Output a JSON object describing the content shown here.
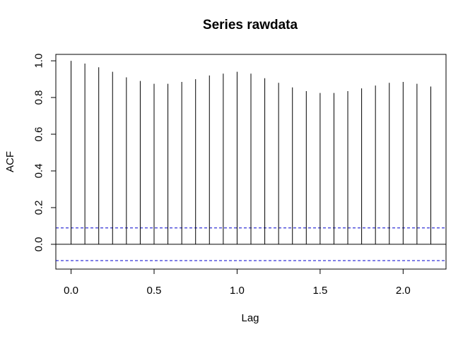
{
  "chart_data": {
    "type": "bar",
    "title": "Series  rawdata",
    "xlabel": "Lag",
    "ylabel": "ACF",
    "xlim": [
      -0.0917,
      2.2583
    ],
    "ylim": [
      -0.135,
      1.035
    ],
    "x_ticks": [
      "0.0",
      "0.5",
      "1.0",
      "1.5",
      "2.0"
    ],
    "y_ticks": [
      "0.0",
      "0.2",
      "0.4",
      "0.6",
      "0.8",
      "1.0"
    ],
    "x": [
      0.0,
      0.0833,
      0.1667,
      0.25,
      0.3333,
      0.4167,
      0.5,
      0.5833,
      0.6667,
      0.75,
      0.8333,
      0.9167,
      1.0,
      1.0833,
      1.1667,
      1.25,
      1.3333,
      1.4167,
      1.5,
      1.5833,
      1.6667,
      1.75,
      1.8333,
      1.9167,
      2.0,
      2.0833,
      2.1667
    ],
    "values": [
      1.0,
      0.985,
      0.965,
      0.94,
      0.91,
      0.89,
      0.875,
      0.875,
      0.885,
      0.9,
      0.92,
      0.93,
      0.94,
      0.93,
      0.905,
      0.88,
      0.855,
      0.835,
      0.825,
      0.825,
      0.835,
      0.85,
      0.865,
      0.88,
      0.885,
      0.875,
      0.86
    ],
    "confidence_bounds": [
      0.089,
      -0.089
    ],
    "colors": {
      "lines": "#000000",
      "confidence": "#0000cc"
    },
    "grid": false
  }
}
